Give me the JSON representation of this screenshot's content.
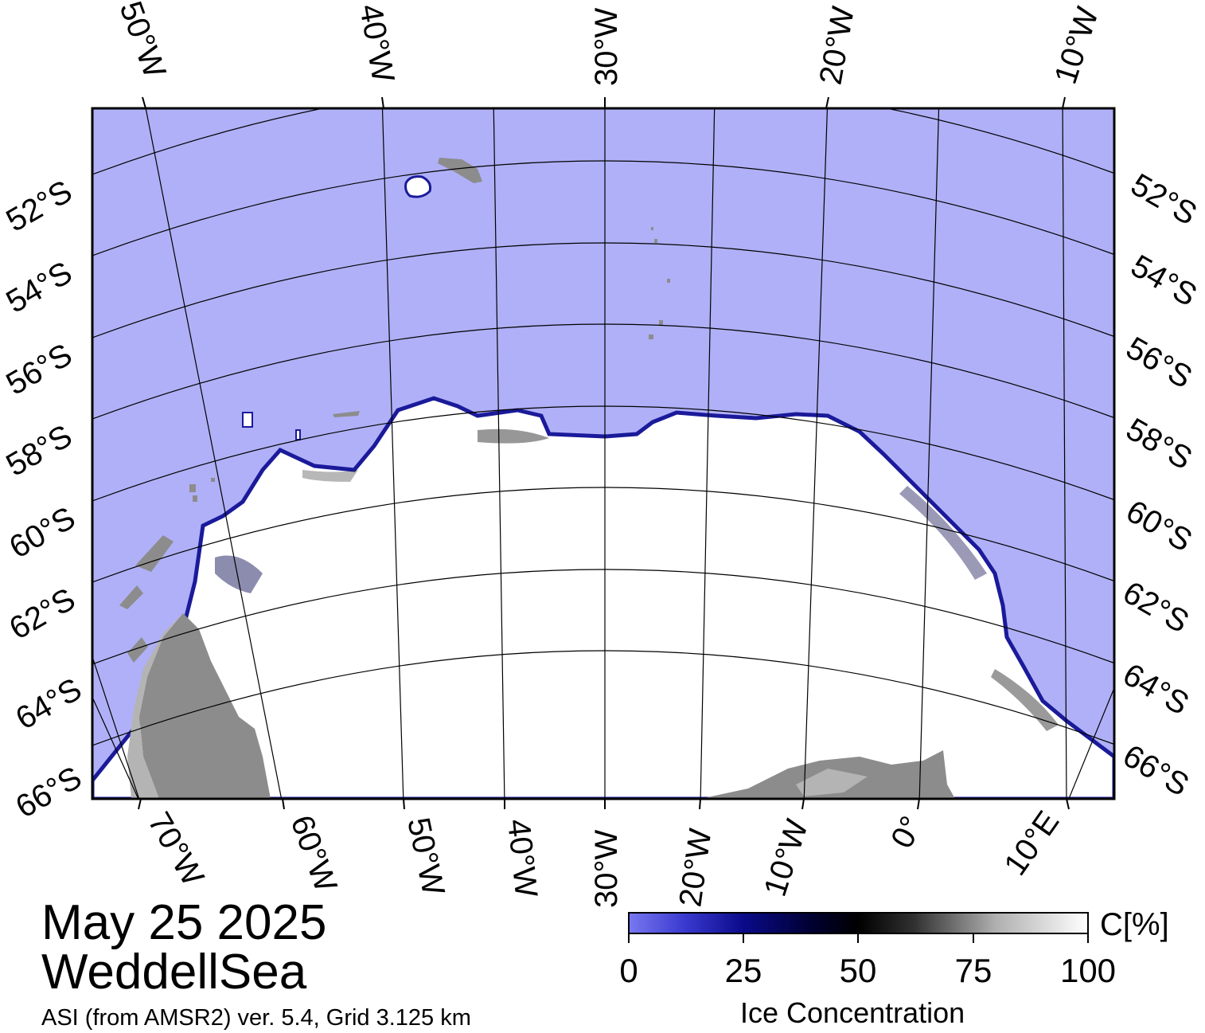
{
  "map": {
    "date": "May 25 2025",
    "region": "WeddellSea",
    "product": "ASI (from AMSR2) ver. 5.4,  Grid 3.125 km",
    "top_longitude_labels": [
      "50°W",
      "40°W",
      "30°W",
      "20°W",
      "10°W"
    ],
    "bottom_longitude_labels": [
      "70°W",
      "60°W",
      "50°W",
      "40°W",
      "30°W",
      "20°W",
      "10°W",
      "0°",
      "10°E"
    ],
    "left_latitude_labels": [
      "52°S",
      "54°S",
      "56°S",
      "58°S",
      "60°S",
      "62°S",
      "64°S",
      "66°S"
    ],
    "right_latitude_labels": [
      "52°S",
      "54°S",
      "56°S",
      "58°S",
      "60°S",
      "62°S",
      "64°S",
      "66°S"
    ],
    "colors": {
      "open_water": "#b0b0f8",
      "land": "#8c8c8c",
      "ice_shelf": "#b4b4b4",
      "sea_ice": "#ffffff",
      "ice_edge": "#1a1a9a",
      "graticule": "#000000"
    }
  },
  "colorbar": {
    "unit": "C[%]",
    "title": "Ice Concentration",
    "ticks": [
      "0",
      "25",
      "50",
      "75",
      "100"
    ],
    "range": [
      0,
      100
    ],
    "stops": [
      {
        "value": 0,
        "color": "#7878f0"
      },
      {
        "value": 12,
        "color": "#3a3ad0"
      },
      {
        "value": 25,
        "color": "#0a0a8a"
      },
      {
        "value": 40,
        "color": "#000030"
      },
      {
        "value": 50,
        "color": "#000000"
      },
      {
        "value": 62,
        "color": "#303030"
      },
      {
        "value": 80,
        "color": "#b0b0b0"
      },
      {
        "value": 100,
        "color": "#ffffff"
      }
    ]
  }
}
